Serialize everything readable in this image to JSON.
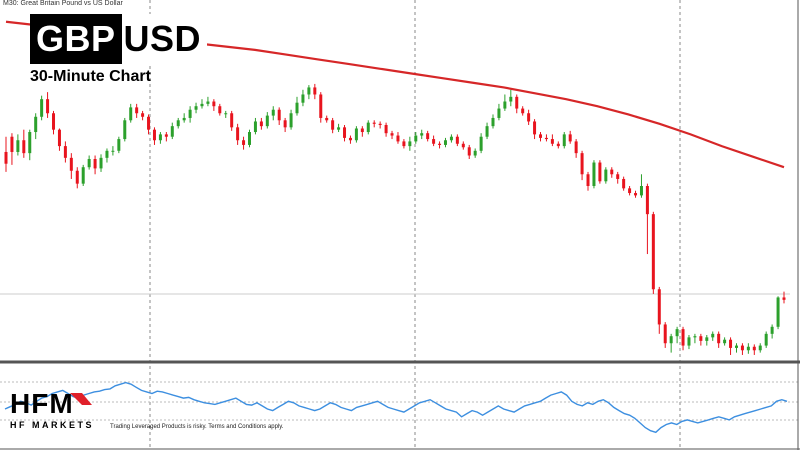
{
  "header": {
    "timeframe_symbol_label": "M30: Great Britain Pound vs US Dollar"
  },
  "title": {
    "part_dark": "GBP",
    "part_light": "USD",
    "subtitle": "30-Minute Chart"
  },
  "logo": {
    "letters": "HFM",
    "name": "HF MARKETS"
  },
  "disclaimer": "Trading Leveraged Products is risky. Terms and Conditions apply.",
  "colors": {
    "bull": "#2ca02c",
    "bear": "#e8141e",
    "moving_average": "#d62728",
    "indicator": "#3d8fe0",
    "grid": "#888888"
  },
  "chart_data": [
    {
      "type": "candlestick",
      "title": "GBPUSD 30-Minute Chart",
      "candles": [
        [
          79,
          69,
          92,
          62
        ],
        [
          92,
          79,
          95,
          68
        ],
        [
          79,
          89,
          94,
          76
        ],
        [
          89,
          78,
          98,
          74
        ],
        [
          78,
          96,
          98,
          72
        ],
        [
          96,
          109,
          112,
          90
        ],
        [
          109,
          124,
          127,
          106
        ],
        [
          124,
          112,
          130,
          108
        ],
        [
          112,
          98,
          114,
          94
        ],
        [
          98,
          84,
          99,
          80
        ],
        [
          84,
          74,
          88,
          70
        ],
        [
          74,
          63,
          78,
          56
        ],
        [
          63,
          52,
          66,
          48
        ],
        [
          52,
          66,
          68,
          50
        ],
        [
          66,
          73,
          76,
          64
        ],
        [
          73,
          65,
          76,
          60
        ],
        [
          65,
          74,
          77,
          62
        ],
        [
          74,
          80,
          82,
          70
        ],
        [
          80,
          80,
          84,
          76
        ],
        [
          80,
          90,
          92,
          78
        ],
        [
          90,
          106,
          108,
          88
        ],
        [
          106,
          117,
          120,
          104
        ],
        [
          117,
          112,
          120,
          108
        ],
        [
          112,
          109,
          114,
          106
        ],
        [
          109,
          98,
          111,
          94
        ],
        [
          98,
          89,
          100,
          85
        ],
        [
          89,
          94,
          96,
          86
        ],
        [
          94,
          92,
          96,
          88
        ],
        [
          92,
          101,
          104,
          90
        ],
        [
          101,
          106,
          108,
          99
        ],
        [
          106,
          108,
          112,
          104
        ],
        [
          108,
          115,
          118,
          104
        ],
        [
          115,
          118,
          121,
          112
        ],
        [
          118,
          120,
          124,
          116
        ],
        [
          120,
          122,
          126,
          118
        ],
        [
          122,
          118,
          124,
          114
        ],
        [
          118,
          112,
          120,
          110
        ],
        [
          112,
          112,
          114,
          108
        ],
        [
          112,
          100,
          114,
          97
        ],
        [
          100,
          89,
          103,
          85
        ],
        [
          89,
          85,
          92,
          81
        ],
        [
          85,
          96,
          98,
          83
        ],
        [
          96,
          105,
          108,
          94
        ],
        [
          105,
          101,
          108,
          98
        ],
        [
          101,
          110,
          113,
          99
        ],
        [
          110,
          115,
          118,
          106
        ],
        [
          115,
          106,
          117,
          102
        ],
        [
          106,
          100,
          108,
          96
        ],
        [
          100,
          112,
          115,
          98
        ],
        [
          112,
          121,
          126,
          110
        ],
        [
          121,
          128,
          132,
          118
        ],
        [
          128,
          134,
          136,
          124
        ],
        [
          134,
          128,
          137,
          124
        ],
        [
          128,
          108,
          130,
          104
        ],
        [
          108,
          106,
          110,
          104
        ],
        [
          106,
          98,
          108,
          95
        ],
        [
          98,
          100,
          103,
          96
        ],
        [
          100,
          91,
          102,
          88
        ],
        [
          91,
          89,
          93,
          86
        ],
        [
          89,
          99,
          101,
          87
        ],
        [
          99,
          96,
          101,
          92
        ],
        [
          96,
          104,
          106,
          94
        ],
        [
          104,
          103,
          106,
          100
        ],
        [
          103,
          102,
          105,
          99
        ],
        [
          102,
          95,
          104,
          92
        ],
        [
          95,
          93,
          97,
          90
        ],
        [
          93,
          88,
          96,
          86
        ],
        [
          88,
          84,
          90,
          82
        ],
        [
          84,
          88,
          92,
          80
        ],
        [
          88,
          93,
          96,
          86
        ],
        [
          93,
          95,
          98,
          90
        ],
        [
          95,
          90,
          97,
          88
        ],
        [
          90,
          86,
          93,
          84
        ],
        [
          86,
          85,
          88,
          82
        ],
        [
          85,
          89,
          91,
          83
        ],
        [
          89,
          92,
          94,
          87
        ],
        [
          92,
          86,
          94,
          84
        ],
        [
          86,
          83,
          88,
          81
        ],
        [
          83,
          76,
          85,
          73
        ],
        [
          76,
          80,
          82,
          74
        ],
        [
          80,
          92,
          95,
          78
        ],
        [
          92,
          101,
          104,
          90
        ],
        [
          101,
          108,
          111,
          99
        ],
        [
          108,
          116,
          120,
          106
        ],
        [
          116,
          122,
          128,
          114
        ],
        [
          122,
          126,
          132,
          118
        ],
        [
          126,
          116,
          128,
          112
        ],
        [
          116,
          112,
          118,
          110
        ],
        [
          112,
          105,
          115,
          102
        ],
        [
          105,
          94,
          107,
          90
        ],
        [
          94,
          91,
          96,
          88
        ],
        [
          91,
          90,
          94,
          88
        ],
        [
          90,
          86,
          94,
          84
        ],
        [
          86,
          84,
          88,
          82
        ],
        [
          84,
          94,
          96,
          82
        ],
        [
          94,
          88,
          97,
          86
        ],
        [
          88,
          78,
          90,
          74
        ],
        [
          78,
          60,
          80,
          55
        ],
        [
          60,
          50,
          62,
          46
        ],
        [
          50,
          70,
          72,
          48
        ],
        [
          70,
          54,
          72,
          52
        ],
        [
          54,
          64,
          66,
          52
        ],
        [
          64,
          60,
          66,
          57
        ],
        [
          60,
          56,
          62,
          52
        ],
        [
          56,
          48,
          58,
          46
        ],
        [
          48,
          44,
          50,
          42
        ],
        [
          44,
          42,
          46,
          40
        ],
        [
          42,
          50,
          60,
          40
        ],
        [
          50,
          26,
          52,
          -8
        ],
        [
          26,
          -38,
          28,
          -42
        ],
        [
          -38,
          -68,
          -36,
          -76
        ],
        [
          -68,
          -84,
          -66,
          -88
        ],
        [
          -84,
          -78,
          -76,
          -92
        ],
        [
          -78,
          -72,
          -70,
          -84
        ],
        [
          -72,
          -86,
          -70,
          -90
        ],
        [
          -86,
          -79,
          -77,
          -89
        ],
        [
          -79,
          -78,
          -76,
          -84
        ],
        [
          -78,
          -82,
          -76,
          -86
        ],
        [
          -82,
          -79,
          -77,
          -86
        ],
        [
          -79,
          -76,
          -74,
          -82
        ],
        [
          -76,
          -84,
          -74,
          -88
        ],
        [
          -84,
          -81,
          -79,
          -86
        ],
        [
          -81,
          -88,
          -79,
          -94
        ],
        [
          -88,
          -86,
          -84,
          -92
        ],
        [
          -86,
          -90,
          -84,
          -94
        ],
        [
          -90,
          -87,
          -84,
          -93
        ],
        [
          -87,
          -90,
          -85,
          -94
        ],
        [
          -90,
          -86,
          -84,
          -92
        ],
        [
          -86,
          -76,
          -74,
          -88
        ],
        [
          -76,
          -70,
          -68,
          -80
        ],
        [
          -70,
          -45,
          -44,
          -72
        ],
        [
          -45,
          -47,
          -40,
          -50
        ]
      ],
      "moving_average": [
        [
          0,
          190
        ],
        [
          0.04,
          187
        ],
        [
          0.08,
          184
        ],
        [
          0.12,
          181
        ],
        [
          0.16,
          178
        ],
        [
          0.2,
          175
        ],
        [
          0.24,
          172
        ],
        [
          0.28,
          169
        ],
        [
          0.32,
          166
        ],
        [
          0.36,
          162
        ],
        [
          0.4,
          158
        ],
        [
          0.44,
          154
        ],
        [
          0.48,
          150
        ],
        [
          0.52,
          146
        ],
        [
          0.56,
          142
        ],
        [
          0.6,
          138
        ],
        [
          0.64,
          134
        ],
        [
          0.68,
          129
        ],
        [
          0.72,
          124
        ],
        [
          0.76,
          118
        ],
        [
          0.8,
          111
        ],
        [
          0.84,
          103
        ],
        [
          0.88,
          94
        ],
        [
          0.92,
          84
        ],
        [
          0.96,
          75
        ],
        [
          1.0,
          66
        ]
      ],
      "reference_line": -42
    },
    {
      "type": "line",
      "title": "",
      "values": [
        40,
        43,
        46,
        50,
        48,
        45,
        50,
        54,
        56,
        60,
        62,
        64,
        60,
        56,
        54,
        58,
        60,
        62,
        63,
        65,
        66,
        70,
        72,
        74,
        72,
        68,
        64,
        62,
        60,
        63,
        62,
        60,
        58,
        56,
        54,
        55,
        52,
        50,
        48,
        47,
        46,
        48,
        50,
        52,
        54,
        50,
        46,
        45,
        48,
        44,
        40,
        38,
        42,
        46,
        50,
        48,
        44,
        42,
        40,
        38,
        40,
        44,
        48,
        46,
        42,
        40,
        38,
        42,
        44,
        46,
        48,
        50,
        46,
        42,
        40,
        38,
        36,
        40,
        44,
        48,
        50,
        52,
        48,
        44,
        40,
        38,
        36,
        30,
        34,
        38,
        36,
        32,
        36,
        40,
        44,
        40,
        38,
        36,
        40,
        44,
        46,
        48,
        50,
        54,
        58,
        60,
        62,
        58,
        50,
        46,
        44,
        48,
        46,
        50,
        52,
        48,
        42,
        38,
        34,
        32,
        28,
        22,
        16,
        12,
        10,
        16,
        20,
        22,
        20,
        24,
        26,
        24,
        22,
        24,
        26,
        28,
        30,
        28,
        26,
        30,
        32,
        34,
        36,
        38,
        40,
        42,
        44,
        50,
        52,
        50
      ]
    }
  ]
}
